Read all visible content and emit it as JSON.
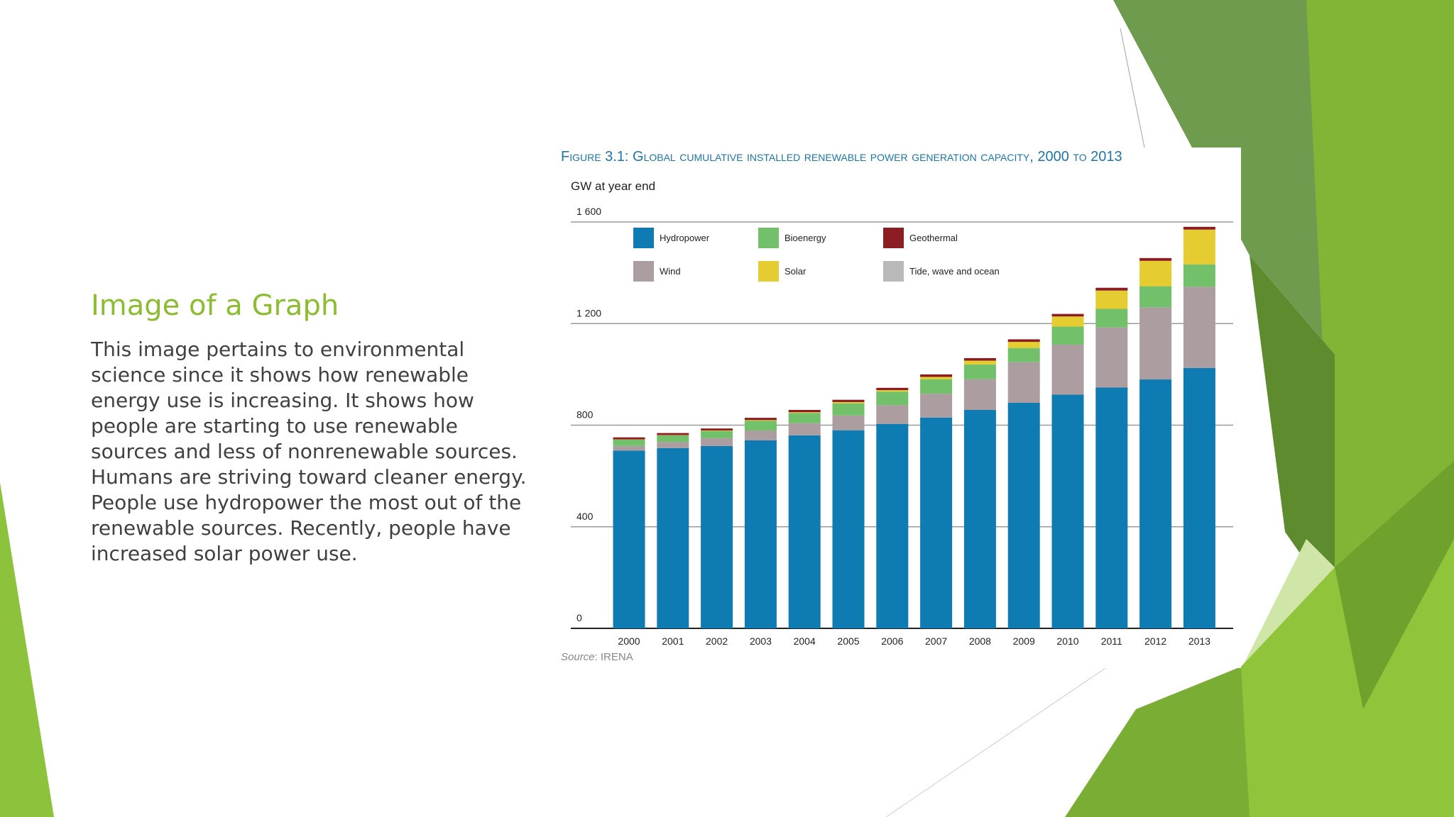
{
  "slide": {
    "title": "Image of a Graph",
    "body": "This image pertains to environmental science since it shows how renewable energy use is increasing. It shows how people are starting to use renewable sources and less of nonrenewable sources. Humans are striving toward cleaner energy. People use hydropower the most out of the renewable sources. Recently, people have increased solar power use."
  },
  "colors": {
    "title_green": "#8cbc2f",
    "figure_title_blue": "#1d77a8",
    "hydropower": "#0f7bb3",
    "wind": "#ac9da0",
    "bioenergy": "#73c06b",
    "solar": "#e5cc30",
    "geothermal": "#8c1d22",
    "tide": "#b9b9b9"
  },
  "chart_data": {
    "type": "bar",
    "stacked": true,
    "title": "Figure 3.1: Global cumulative installed renewable power generation capacity, 2000 to 2013",
    "ylabel": "GW at year end",
    "ylim": [
      0,
      1600
    ],
    "yticks": [
      0,
      400,
      800,
      1200,
      1600
    ],
    "ytick_labels": [
      "0",
      "400",
      "800",
      "1 200",
      "1 600"
    ],
    "grid": true,
    "legend_position": "top-left inside plot",
    "categories": [
      "2000",
      "2001",
      "2002",
      "2003",
      "2004",
      "2005",
      "2006",
      "2007",
      "2008",
      "2009",
      "2010",
      "2011",
      "2012",
      "2013"
    ],
    "series": [
      {
        "name": "Hydropower",
        "color_key": "hydropower",
        "values": [
          700,
          710,
          718,
          740,
          760,
          780,
          805,
          830,
          860,
          888,
          920,
          948,
          980,
          1025
        ]
      },
      {
        "name": "Wind",
        "color_key": "wind",
        "values": [
          18,
          24,
          31,
          39,
          48,
          58,
          74,
          94,
          121,
          160,
          197,
          237,
          284,
          320
        ]
      },
      {
        "name": "Bioenergy",
        "color_key": "bioenergy",
        "values": [
          25,
          26,
          28,
          38,
          40,
          48,
          53,
          57,
          58,
          56,
          71,
          73,
          83,
          88
        ]
      },
      {
        "name": "Solar",
        "color_key": "solar",
        "values": [
          1,
          1,
          2,
          3,
          3,
          5,
          6,
          9,
          15,
          24,
          40,
          72,
          100,
          137
        ]
      },
      {
        "name": "Geothermal",
        "color_key": "geothermal",
        "values": [
          8,
          8,
          8,
          9,
          9,
          9,
          9,
          10,
          10,
          10,
          10,
          11,
          11,
          11
        ]
      },
      {
        "name": "Tide, wave and ocean",
        "color_key": "tide",
        "values": [
          0,
          0,
          0,
          0,
          0,
          0,
          0,
          0,
          0,
          0,
          0,
          0,
          0,
          0
        ]
      }
    ],
    "legend": [
      {
        "name": "Hydropower",
        "color_key": "hydropower"
      },
      {
        "name": "Bioenergy",
        "color_key": "bioenergy"
      },
      {
        "name": "Geothermal",
        "color_key": "geothermal"
      },
      {
        "name": "Wind",
        "color_key": "wind"
      },
      {
        "name": "Solar",
        "color_key": "solar"
      },
      {
        "name": "Tide, wave and ocean",
        "color_key": "tide"
      }
    ],
    "source_label": "Source",
    "source_value": ": IRENA"
  }
}
